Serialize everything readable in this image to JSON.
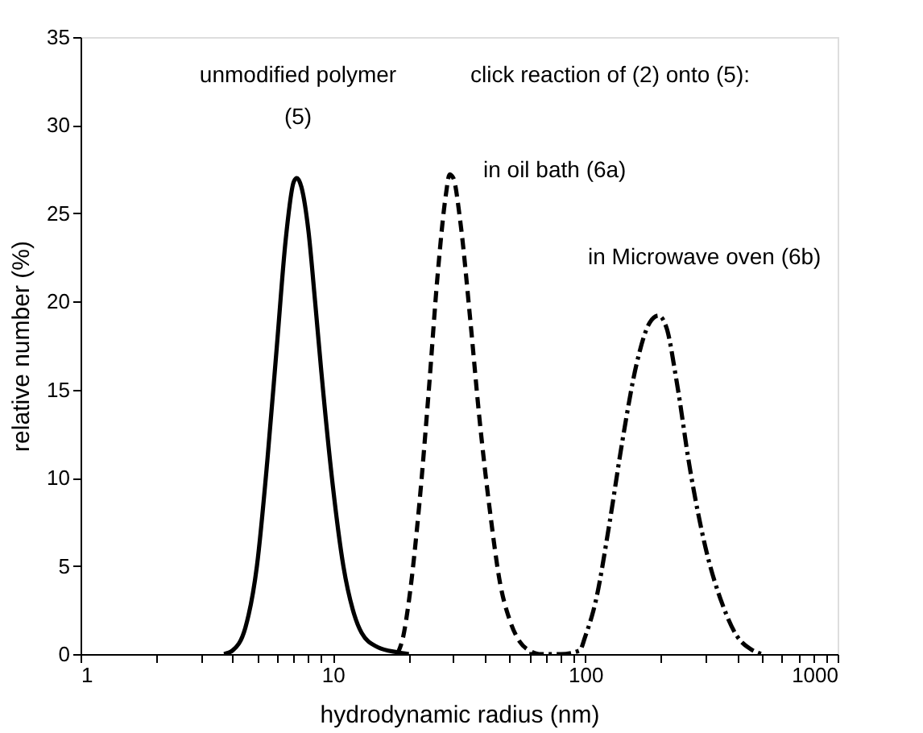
{
  "chart_data": {
    "type": "line",
    "xlabel": "hydrodynamic radius (nm)",
    "ylabel": "relative number (%)",
    "log": "x",
    "xlim": [
      1,
      1000
    ],
    "ylim": [
      0,
      35
    ],
    "xticks": [
      1,
      {
        "value": 2,
        "label": null
      },
      {
        "value": 3,
        "label": null
      },
      {
        "value": 4,
        "label": null
      },
      {
        "value": 5,
        "label": null
      },
      {
        "value": 6,
        "label": null
      },
      {
        "value": 7,
        "label": null
      },
      {
        "value": 8,
        "label": null
      },
      {
        "value": 9,
        "label": null
      },
      10,
      {
        "value": 20,
        "label": null
      },
      {
        "value": 30,
        "label": null
      },
      {
        "value": 40,
        "label": null
      },
      {
        "value": 50,
        "label": null
      },
      {
        "value": 60,
        "label": null
      },
      {
        "value": 70,
        "label": null
      },
      {
        "value": 80,
        "label": null
      },
      {
        "value": 90,
        "label": null
      },
      100,
      {
        "value": 200,
        "label": null
      },
      {
        "value": 300,
        "label": null
      },
      {
        "value": 400,
        "label": null
      },
      {
        "value": 500,
        "label": null
      },
      {
        "value": 600,
        "label": null
      },
      {
        "value": 700,
        "label": null
      },
      {
        "value": 800,
        "label": null
      },
      {
        "value": 900,
        "label": null
      },
      1000
    ],
    "yticks": [
      0,
      5,
      10,
      15,
      20,
      25,
      30,
      35
    ],
    "marker": "none",
    "series": [
      {
        "color": "#000000",
        "line_style": "solid",
        "x": [
          3.7,
          4,
          4.5,
          5,
          5.5,
          6,
          6.5,
          7,
          7.2,
          7.5,
          8,
          8.5,
          9,
          10,
          11,
          12,
          13,
          15,
          18,
          20
        ],
        "values": [
          0,
          0.2,
          1.5,
          5,
          11,
          17.5,
          23.5,
          26.8,
          27,
          26.5,
          24,
          20,
          16,
          9.5,
          5,
          2.5,
          1.2,
          0.4,
          0.1,
          0
        ]
      },
      {
        "color": "#000000",
        "line_style": "dashed",
        "x": [
          18,
          19,
          20,
          22,
          24,
          26,
          28,
          29,
          30,
          32,
          35,
          38,
          42,
          46,
          50,
          55,
          60,
          65
        ],
        "values": [
          0,
          1,
          3,
          8.5,
          15,
          21.5,
          26,
          27.2,
          27,
          24.5,
          19,
          13.5,
          8,
          4,
          2,
          0.7,
          0.2,
          0
        ]
      },
      {
        "color": "#000000",
        "line_style": "dashdot",
        "x": [
          60,
          80,
          95,
          100,
          110,
          125,
          140,
          160,
          180,
          195,
          210,
          230,
          260,
          300,
          350,
          400,
          450,
          500
        ],
        "values": [
          0,
          0,
          0.2,
          1,
          3,
          7.5,
          12,
          16.5,
          18.8,
          19.2,
          18.5,
          15.5,
          10.5,
          6,
          2.8,
          1,
          0.3,
          0
        ]
      }
    ],
    "annotations": [
      "unmodified polymer",
      "(5)",
      "click reaction of (2) onto (5):",
      "in oil bath (6a)",
      "in Microwave oven (6b)"
    ]
  }
}
